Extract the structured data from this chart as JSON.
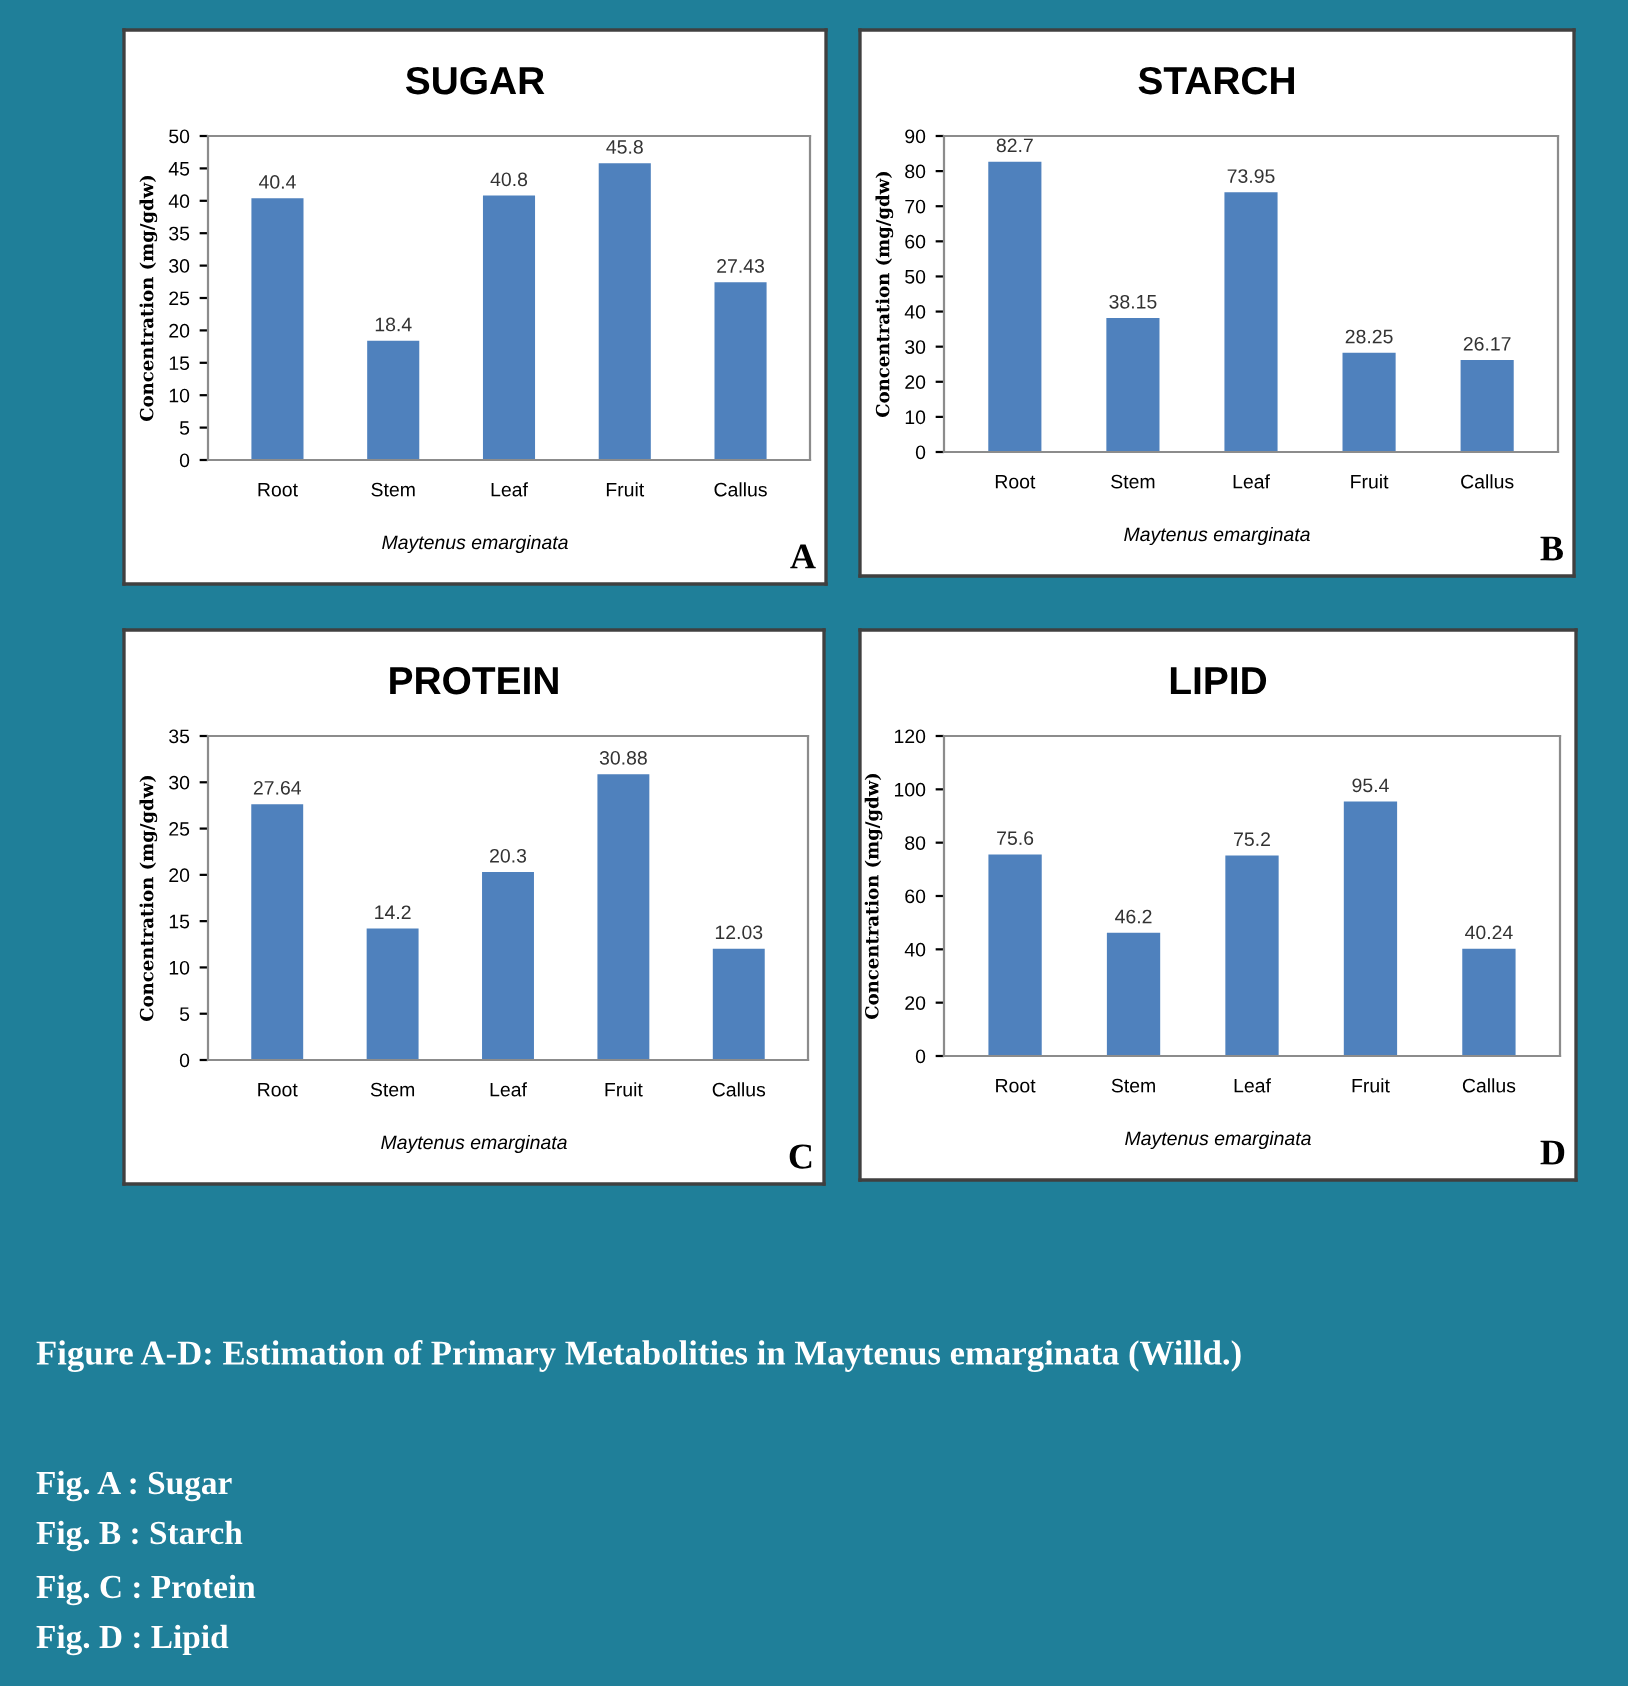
{
  "chart_data": [
    {
      "type": "bar",
      "title": "SUGAR",
      "xlabel": "Maytenus emarginata",
      "ylabel": "Concentration (mg/gdw)",
      "categories": [
        "Root",
        "Stem",
        "Leaf",
        "Fruit",
        "Callus"
      ],
      "values": [
        40.4,
        18.4,
        40.8,
        45.8,
        27.43
      ],
      "color": "#4f81bd",
      "ylim": [
        0,
        50
      ],
      "yticks": [
        0,
        5,
        10,
        15,
        20,
        25,
        30,
        35,
        40,
        45,
        50
      ],
      "data_labels": true,
      "annotations": [
        "A"
      ]
    },
    {
      "type": "bar",
      "title": "STARCH",
      "xlabel": "Maytenus emarginata",
      "ylabel": "Concentration (mg/gdw)",
      "categories": [
        "Root",
        "Stem",
        "Leaf",
        "Fruit",
        "Callus"
      ],
      "values": [
        82.7,
        38.15,
        73.95,
        28.25,
        26.17
      ],
      "color": "#4f81bd",
      "ylim": [
        0,
        90
      ],
      "yticks": [
        0,
        10,
        20,
        30,
        40,
        50,
        60,
        70,
        80,
        90
      ],
      "data_labels": true,
      "annotations": [
        "B"
      ]
    },
    {
      "type": "bar",
      "title": "PROTEIN",
      "xlabel": "Maytenus emarginata",
      "ylabel": "Concentration (mg/gdw)",
      "categories": [
        "Root",
        "Stem",
        "Leaf",
        "Fruit",
        "Callus"
      ],
      "values": [
        27.64,
        14.2,
        20.3,
        30.88,
        12.03
      ],
      "color": "#4f81bd",
      "ylim": [
        0,
        35
      ],
      "yticks": [
        0,
        5,
        10,
        15,
        20,
        25,
        30,
        35
      ],
      "data_labels": true,
      "annotations": [
        "C"
      ]
    },
    {
      "type": "bar",
      "title": "LIPID",
      "xlabel": "Maytenus emarginata",
      "ylabel": "Concentration (mg/gdw)",
      "categories": [
        "Root",
        "Stem",
        "Leaf",
        "Fruit",
        "Callus"
      ],
      "values": [
        75.6,
        46.2,
        75.2,
        95.4,
        40.24
      ],
      "color": "#4f81bd",
      "ylim": [
        0,
        120
      ],
      "yticks": [
        0,
        20,
        40,
        60,
        80,
        100,
        120
      ],
      "data_labels": true,
      "annotations": [
        "D"
      ]
    },
    {
      "type": "other",
      "annotations": [
        "Figure A-D: Estimation of Primary Metabolities in Maytenus emarginata (Willd.)",
        "Fig. A : Sugar",
        "Fig. B : Starch",
        "Fig. C : Protein",
        "Fig. D : Lipid"
      ]
    }
  ]
}
